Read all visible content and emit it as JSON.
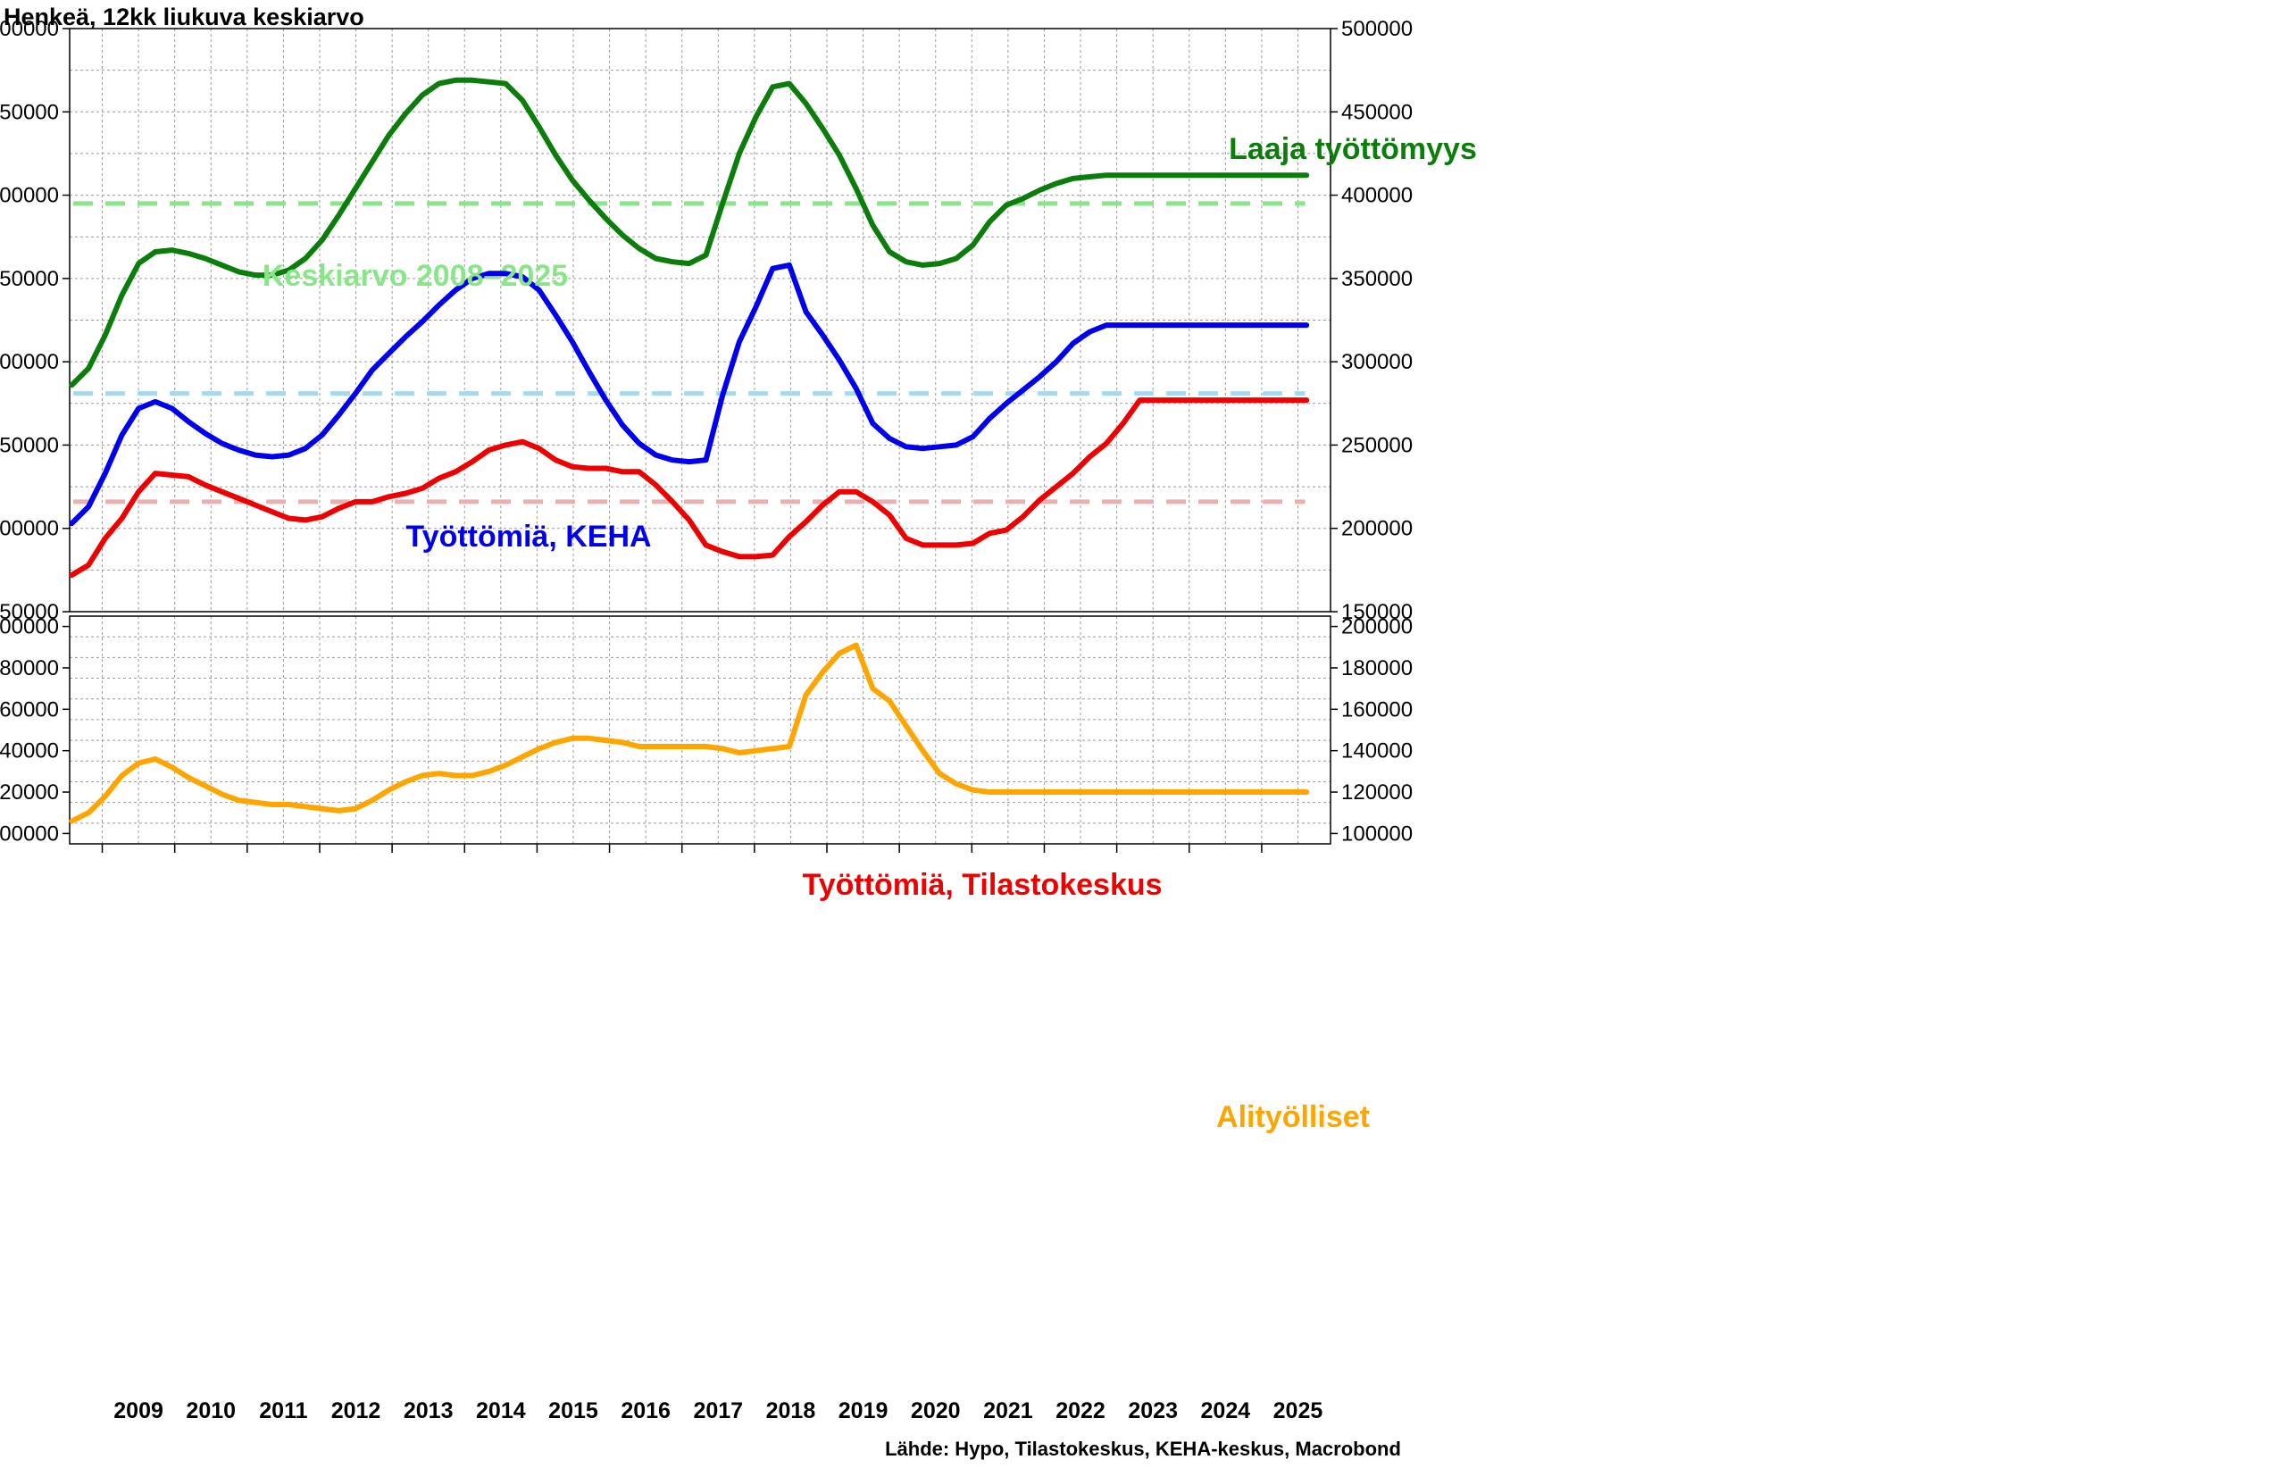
{
  "title": "Henkeä, 12kk liukuva keskiarvo",
  "source": "Lähde: Hypo, Tilastokeskus, KEHA-keskus, Macrobond",
  "colors": {
    "laaja": "#0b7d0b",
    "keha": "#0000ee",
    "tilasto": "#ee0000",
    "alityo": "#ffa500",
    "avg_laaja": "#88e688",
    "avg_keha": "#a8d8ee",
    "avg_tilasto": "#eab0b0",
    "grid": "#9a9a9a"
  },
  "chart_data": [
    {
      "type": "line",
      "title": "",
      "ylim": [
        150000,
        500000
      ],
      "yticks": [
        150000,
        200000,
        250000,
        300000,
        350000,
        400000,
        450000,
        500000
      ],
      "xlim": [
        2008.55,
        2026.0
      ],
      "xlabels": [
        "2009",
        "2010",
        "2011",
        "2012",
        "2013",
        "2014",
        "2015",
        "2016",
        "2017",
        "2018",
        "2019",
        "2020",
        "2021",
        "2022",
        "2023",
        "2024",
        "2025"
      ],
      "annotations": [
        {
          "text": "Laaja työttömyys",
          "series": "laaja"
        },
        {
          "text": "Keskiarvo 2008–2025",
          "series": "avg_laaja"
        },
        {
          "text": "Työttömiä, KEHA",
          "series": "keha"
        },
        {
          "text": "Työttömiä, Tilastokeskus",
          "series": "tilasto"
        }
      ],
      "averages": [
        {
          "name": "Keskiarvo 2008–2025",
          "key": "avg_laaja",
          "value": 395000
        },
        {
          "key": "avg_keha",
          "value": 281000
        },
        {
          "key": "avg_tilasto",
          "value": 216000
        }
      ],
      "series": [
        {
          "name": "Laaja työttömyys",
          "key": "laaja",
          "x": [
            2008.58,
            2008.75,
            2009.0,
            2009.25,
            2009.5,
            2009.75,
            2010.0,
            2010.25,
            2010.5,
            2010.75,
            2011.0,
            2011.25,
            2011.5,
            2011.75,
            2012.0,
            2012.25,
            2012.5,
            2012.75,
            2013.0,
            2013.25,
            2013.5,
            2013.75,
            2014.0,
            2014.25,
            2014.5,
            2014.75,
            2015.0,
            2015.25,
            2015.5,
            2015.75,
            2016.0,
            2016.25,
            2016.5,
            2016.75,
            2017.0,
            2017.25,
            2017.5,
            2017.75,
            2018.0,
            2018.25,
            2018.5,
            2018.75,
            2019.0,
            2019.25,
            2019.5,
            2019.62,
            2019.7,
            2019.85,
            2020.0,
            2020.25,
            2020.5,
            2020.62,
            2020.7,
            2020.85,
            2021.0,
            2021.25,
            2021.5,
            2021.75,
            2022.0,
            2022.25,
            2022.5,
            2022.62,
            2022.75,
            2023.0,
            2023.25,
            2023.5,
            2023.75,
            2024.0,
            2024.25,
            2024.5,
            2024.75,
            2025.0,
            2025.25,
            2025.5,
            2025.62
          ],
          "values": [
            286000,
            296000,
            316000,
            340000,
            359000,
            366000,
            367000,
            365000,
            362000,
            358000,
            354000,
            352000,
            352000,
            355000,
            362000,
            373000,
            388000,
            404000,
            420000,
            436000,
            449000,
            460000,
            467000,
            469000,
            469000,
            468000,
            467000,
            457000,
            441000,
            424000,
            409000,
            397000,
            386000,
            376000,
            368000,
            362000,
            360000,
            359000,
            364000,
            395000,
            425000,
            447000,
            465000,
            467000,
            455000,
            440000,
            424000,
            404000,
            382000,
            366000,
            360000,
            358000,
            359000,
            362000,
            370000,
            384000,
            394000,
            398000,
            403000,
            407000,
            410000,
            411000,
            412000,
            412000,
            412000,
            412000,
            412000,
            412000,
            412000,
            412000,
            412000,
            412000,
            412000,
            412000,
            412000
          ]
        },
        {
          "name": "Työttömiä, KEHA",
          "key": "keha",
          "x": [
            2008.58,
            2008.75,
            2009.0,
            2009.25,
            2009.5,
            2009.75,
            2010.0,
            2010.25,
            2010.5,
            2010.75,
            2011.0,
            2011.25,
            2011.5,
            2011.75,
            2012.0,
            2012.25,
            2012.5,
            2012.75,
            2013.0,
            2013.25,
            2013.5,
            2013.75,
            2014.0,
            2014.25,
            2014.5,
            2014.75,
            2015.0,
            2015.25,
            2015.5,
            2015.75,
            2016.0,
            2016.25,
            2016.5,
            2016.75,
            2017.0,
            2017.25,
            2017.5,
            2017.75,
            2018.0,
            2018.25,
            2018.5,
            2018.75,
            2019.0,
            2019.25,
            2019.5,
            2019.62,
            2019.7,
            2019.85,
            2020.0,
            2020.25,
            2020.5,
            2020.62,
            2020.7,
            2020.85,
            2021.0,
            2021.25,
            2021.5,
            2021.75,
            2022.0,
            2022.25,
            2022.5,
            2022.62,
            2022.75,
            2023.0,
            2023.25,
            2023.5,
            2023.75,
            2024.0,
            2024.25,
            2024.5,
            2024.75,
            2025.0,
            2025.25,
            2025.5,
            2025.62
          ],
          "values": [
            203000,
            213000,
            233000,
            256000,
            272000,
            276000,
            272000,
            264000,
            257000,
            251000,
            247000,
            244000,
            243000,
            244000,
            248000,
            256000,
            268000,
            281000,
            295000,
            305000,
            315000,
            324000,
            334000,
            343000,
            350000,
            353000,
            353000,
            351000,
            343000,
            328000,
            312000,
            294000,
            277000,
            262000,
            251000,
            244000,
            241000,
            240000,
            241000,
            280000,
            312000,
            333000,
            356000,
            358000,
            330000,
            316000,
            301000,
            284000,
            263000,
            254000,
            249000,
            248000,
            249000,
            250000,
            255000,
            266000,
            275000,
            283000,
            291000,
            300000,
            311000,
            318000,
            322000,
            322000,
            322000,
            322000,
            322000,
            322000,
            322000,
            322000,
            322000,
            322000,
            322000,
            322000,
            322000
          ]
        },
        {
          "name": "Työttömiä, Tilastokeskus",
          "key": "tilasto",
          "x": [
            2008.58,
            2008.75,
            2009.0,
            2009.25,
            2009.5,
            2009.75,
            2010.0,
            2010.25,
            2010.5,
            2010.75,
            2011.0,
            2011.25,
            2011.5,
            2011.75,
            2012.0,
            2012.25,
            2012.5,
            2012.75,
            2013.0,
            2013.25,
            2013.5,
            2013.75,
            2014.0,
            2014.25,
            2014.5,
            2014.75,
            2015.0,
            2015.25,
            2015.5,
            2015.75,
            2016.0,
            2016.25,
            2016.5,
            2016.75,
            2017.0,
            2017.25,
            2017.5,
            2017.75,
            2018.0,
            2018.25,
            2018.5,
            2018.75,
            2019.0,
            2019.25,
            2019.5,
            2019.62,
            2019.7,
            2019.85,
            2020.0,
            2020.25,
            2020.5,
            2020.62,
            2020.7,
            2020.85,
            2021.0,
            2021.25,
            2021.5,
            2021.75,
            2022.0,
            2022.25,
            2022.5,
            2022.62,
            2022.75,
            2023.0,
            2023.25,
            2023.5,
            2023.75,
            2024.0,
            2024.25,
            2024.5,
            2024.75,
            2025.0,
            2025.25,
            2025.5,
            2025.62
          ],
          "values": [
            172000,
            178000,
            194000,
            206000,
            222000,
            233000,
            232000,
            231000,
            226000,
            222000,
            218000,
            214000,
            210000,
            206000,
            205000,
            207000,
            212000,
            216000,
            216000,
            219000,
            221000,
            224000,
            230000,
            234000,
            240000,
            247000,
            250000,
            252000,
            248000,
            241000,
            237000,
            236000,
            236000,
            234000,
            234000,
            226000,
            216000,
            205000,
            190000,
            186000,
            183000,
            183000,
            184000,
            195000,
            204000,
            214000,
            222000,
            222000,
            216000,
            208000,
            194000,
            190000,
            190000,
            190000,
            191000,
            197000,
            199000,
            207000,
            217000,
            225000,
            233000,
            243000,
            251000,
            263000,
            277000,
            277000,
            277000,
            277000,
            277000,
            277000,
            277000,
            277000,
            277000,
            277000,
            277000
          ]
        }
      ]
    },
    {
      "type": "line",
      "title": "",
      "ylim": [
        95000,
        205000
      ],
      "yticks": [
        100000,
        120000,
        140000,
        160000,
        180000,
        200000
      ],
      "annotations": [
        {
          "text": "Alityölliset",
          "series": "alityo"
        }
      ],
      "series": [
        {
          "name": "Alityölliset",
          "key": "alityo",
          "x": [
            2008.58,
            2008.75,
            2009.0,
            2009.25,
            2009.5,
            2009.75,
            2010.0,
            2010.25,
            2010.5,
            2010.75,
            2011.0,
            2011.25,
            2011.5,
            2011.75,
            2012.0,
            2012.25,
            2012.5,
            2012.75,
            2013.0,
            2013.25,
            2013.5,
            2013.75,
            2014.0,
            2014.25,
            2014.5,
            2014.75,
            2015.0,
            2015.25,
            2015.5,
            2015.75,
            2016.0,
            2016.25,
            2016.5,
            2016.75,
            2017.0,
            2017.25,
            2017.5,
            2017.75,
            2018.0,
            2018.25,
            2018.5,
            2018.75,
            2019.0,
            2019.25,
            2019.5,
            2019.62,
            2019.7,
            2019.85,
            2020.0,
            2020.25,
            2020.5,
            2020.62,
            2020.7,
            2020.85,
            2021.0,
            2021.25,
            2021.5,
            2021.75,
            2022.0,
            2022.25,
            2022.5,
            2022.62,
            2022.75,
            2023.0,
            2023.25,
            2023.5,
            2023.75,
            2024.0,
            2024.25,
            2024.5,
            2024.75,
            2025.0,
            2025.25,
            2025.5,
            2025.62
          ],
          "values": [
            106000,
            110000,
            118000,
            128000,
            134000,
            136000,
            132000,
            127000,
            123000,
            119000,
            116000,
            115000,
            114000,
            114000,
            113000,
            112000,
            111000,
            112000,
            116000,
            121000,
            125000,
            128000,
            129000,
            128000,
            128000,
            130000,
            133000,
            137000,
            141000,
            144000,
            146000,
            146000,
            145000,
            144000,
            142000,
            142000,
            142000,
            142000,
            142000,
            141000,
            139000,
            140000,
            141000,
            142000,
            167000,
            178000,
            187000,
            191000,
            170000,
            164000,
            152000,
            140000,
            129000,
            124000,
            121000,
            120000,
            120000,
            120000,
            120000,
            120000,
            120000,
            120000,
            120000,
            120000,
            120000,
            120000,
            120000,
            120000,
            120000,
            120000,
            120000,
            120000,
            120000,
            120000,
            120000
          ]
        }
      ]
    }
  ]
}
